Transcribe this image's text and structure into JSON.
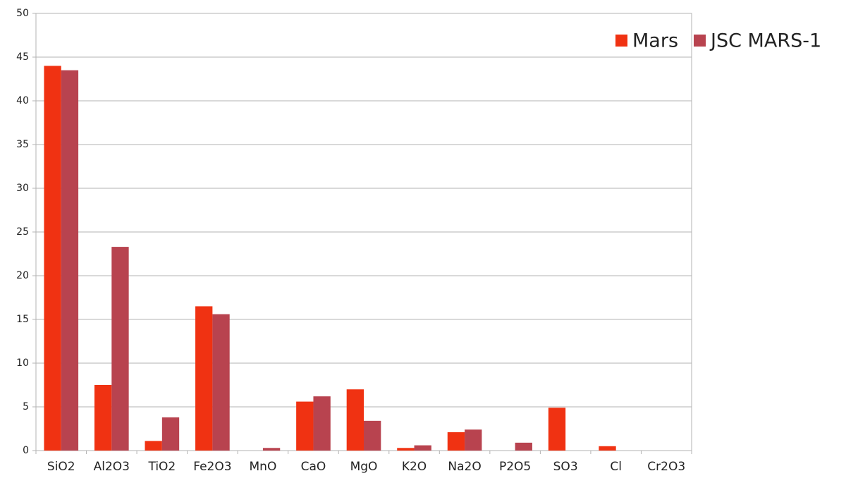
{
  "chart_data": {
    "type": "bar",
    "categories": [
      "SiO2",
      "Al2O3",
      "TiO2",
      "Fe2O3",
      "MnO",
      "CaO",
      "MgO",
      "K2O",
      "Na2O",
      "P2O5",
      "SO3",
      "Cl",
      "Cr2O3"
    ],
    "series": [
      {
        "name": "Mars",
        "color": "#f03212",
        "values": [
          44,
          7.5,
          1.1,
          16.5,
          0,
          5.6,
          7.0,
          0.3,
          2.1,
          0,
          4.9,
          0.5,
          0
        ]
      },
      {
        "name": "JSC MARS-1",
        "color": "#b8434f",
        "values": [
          43.5,
          23.3,
          3.8,
          15.6,
          0.3,
          6.2,
          3.4,
          0.6,
          2.4,
          0.9,
          0,
          0,
          0
        ]
      }
    ],
    "ylim": [
      0,
      50
    ],
    "yticks": [
      0,
      5,
      10,
      15,
      20,
      25,
      30,
      35,
      40,
      45,
      50
    ],
    "grid": true,
    "legend": "right"
  }
}
